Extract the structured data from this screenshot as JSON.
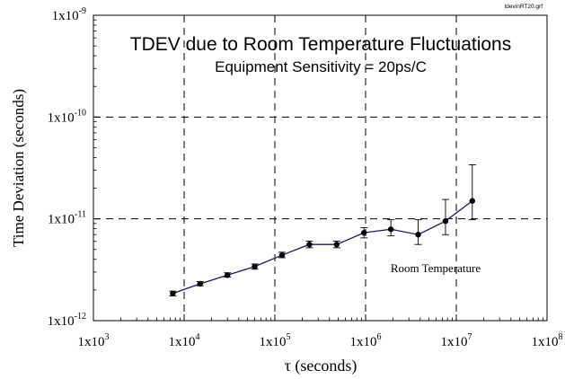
{
  "chart_data": {
    "type": "line",
    "title": "TDEV due to Room Temperature  Fluctuations",
    "subtitle": "Equipment Sensitivity = 20ps/C",
    "file_label": "tdevinRT20.grf",
    "xlabel": "τ (seconds)",
    "ylabel": "Time Deviation (seconds)",
    "x_scale": "log",
    "y_scale": "log",
    "xlim": [
      1000,
      100000000
    ],
    "ylim": [
      1e-12,
      1e-09
    ],
    "x_ticks": [
      {
        "value": 1000,
        "mantissa": "1x10",
        "exp": "3"
      },
      {
        "value": 10000,
        "mantissa": "1x10",
        "exp": "4"
      },
      {
        "value": 100000,
        "mantissa": "1x10",
        "exp": "5"
      },
      {
        "value": 1000000,
        "mantissa": "1x10",
        "exp": "6"
      },
      {
        "value": 10000000,
        "mantissa": "1x10",
        "exp": "7"
      },
      {
        "value": 100000000,
        "mantissa": "1x10",
        "exp": "8"
      }
    ],
    "y_ticks": [
      {
        "value": 1e-12,
        "mantissa": "1x10",
        "exp": "-12"
      },
      {
        "value": 1e-11,
        "mantissa": "1x10",
        "exp": "-11"
      },
      {
        "value": 1e-10,
        "mantissa": "1x10",
        "exp": "-10"
      },
      {
        "value": 1e-09,
        "mantissa": "1x10",
        "exp": "-9"
      }
    ],
    "grid": "dashed-major",
    "annotation": "Room Temperature",
    "colors": {
      "line": "#1a1a5e",
      "marker": "#000000",
      "grid": "#000000"
    },
    "series": [
      {
        "points": [
          {
            "x": 7500,
            "y": 1.85e-12
          },
          {
            "x": 15000,
            "y": 2.3e-12
          },
          {
            "x": 30000,
            "y": 2.8e-12
          },
          {
            "x": 60000,
            "y": 3.4e-12
          },
          {
            "x": 120000,
            "y": 4.4e-12
          },
          {
            "x": 240000,
            "y": 5.6e-12
          },
          {
            "x": 480000,
            "y": 5.6e-12
          },
          {
            "x": 960000,
            "y": 7.3e-12
          },
          {
            "x": 1900000,
            "y": 7.9e-12
          },
          {
            "x": 3800000,
            "y": 7e-12
          },
          {
            "x": 7600000,
            "y": 9.5e-12
          },
          {
            "x": 15000000,
            "y": 1.5e-11
          }
        ],
        "errors": [
          [
            1.75e-12,
            1.95e-12
          ],
          [
            2.2e-12,
            2.42e-12
          ],
          [
            2.68e-12,
            2.95e-12
          ],
          [
            3.2e-12,
            3.6e-12
          ],
          [
            4.15e-12,
            4.7e-12
          ],
          [
            5.2e-12,
            6.05e-12
          ],
          [
            5.2e-12,
            6.05e-12
          ],
          [
            6.5e-12,
            8.2e-12
          ],
          [
            6.8e-12,
            9.8e-12
          ],
          [
            5.6e-12,
            9.8e-12
          ],
          [
            7e-12,
            1.55e-11
          ],
          [
            9.8e-12,
            3.4e-11
          ]
        ]
      }
    ]
  }
}
